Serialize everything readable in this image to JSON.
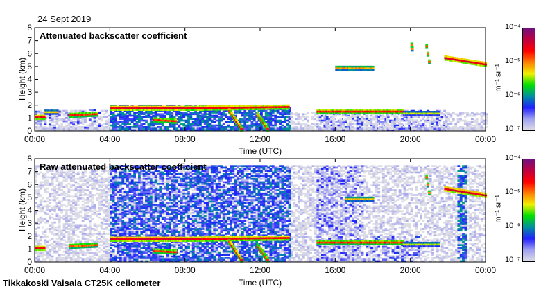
{
  "date_label": "24 Sept 2019",
  "footer": "Tikkakoski Vaisala CT25K ceilometer",
  "colorbar": {
    "unit_label": "m⁻¹ sr⁻¹",
    "tick_labels": [
      "10⁻⁴",
      "10⁻⁵",
      "10⁻⁶",
      "10⁻⁷"
    ],
    "range_log10": [
      -7,
      -4
    ],
    "colors": [
      "#dcdce6",
      "#a0a0f0",
      "#2020ff",
      "#0090a0",
      "#00e000",
      "#f0f000",
      "#ff8000",
      "#ff0000",
      "#c00040",
      "#701080"
    ]
  },
  "chart_data": [
    {
      "type": "heatmap",
      "title": "Attenuated backscatter coefficient",
      "xlabel": "Time (UTC)",
      "ylabel": "Height (km)",
      "xlim_hours": [
        0,
        24
      ],
      "ylim_km": [
        0,
        8
      ],
      "x_tick_labels": [
        "00:00",
        "04:00",
        "08:00",
        "12:00",
        "16:00",
        "20:00",
        "00:00"
      ],
      "y_tick_labels": [
        "0",
        "1",
        "2",
        "3",
        "4",
        "5",
        "6",
        "7",
        "8"
      ],
      "noise_regions": [
        {
          "t": [
            0,
            24
          ],
          "h": [
            0,
            0.2
          ],
          "log10": -7.0,
          "density": 0.9
        },
        {
          "t": [
            0,
            4
          ],
          "h": [
            0,
            1.6
          ],
          "log10": -7.0,
          "density": 0.55
        },
        {
          "t": [
            0,
            3.5
          ],
          "h": [
            0.2,
            1.6
          ],
          "log10": -6.5,
          "density": 0.2
        },
        {
          "t": [
            4,
            13.6
          ],
          "h": [
            0,
            2.0
          ],
          "log10": -6.2,
          "density": 0.75
        },
        {
          "t": [
            15,
            22
          ],
          "h": [
            0,
            1.6
          ],
          "log10": -6.5,
          "density": 0.45
        },
        {
          "t": [
            13.6,
            24
          ],
          "h": [
            0,
            1.5
          ],
          "log10": -7.0,
          "density": 0.5
        }
      ],
      "layers": [
        {
          "t": [
            0,
            0.5
          ],
          "h": [
            1.0,
            1.0
          ],
          "log10": -4.6
        },
        {
          "t": [
            0.5,
            1.2
          ],
          "h": [
            1.4,
            1.4
          ],
          "log10": -5.3
        },
        {
          "t": [
            1.8,
            3.3
          ],
          "h": [
            1.15,
            1.25
          ],
          "log10": -4.8
        },
        {
          "t": [
            4.0,
            8.0
          ],
          "h": [
            1.7,
            1.7
          ],
          "log10": -4.5
        },
        {
          "t": [
            6.3,
            7.5
          ],
          "h": [
            0.8,
            0.7
          ],
          "log10": -4.8
        },
        {
          "t": [
            8.0,
            13.5
          ],
          "h": [
            1.7,
            1.8
          ],
          "log10": -4.6
        },
        {
          "t": [
            10.3,
            11.0
          ],
          "h": [
            1.5,
            0.1
          ],
          "log10": -4.7
        },
        {
          "t": [
            11.8,
            12.4
          ],
          "h": [
            1.2,
            0.1
          ],
          "log10": -4.8
        },
        {
          "t": [
            15.0,
            19.6
          ],
          "h": [
            1.45,
            1.45
          ],
          "log10": -4.7
        },
        {
          "t": [
            16.0,
            18.0
          ],
          "h": [
            4.8,
            4.8
          ],
          "log10": -5.1
        },
        {
          "t": [
            20.0,
            20.1
          ],
          "h": [
            6.6,
            6.3
          ],
          "log10": -5.0
        },
        {
          "t": [
            20.8,
            21.0
          ],
          "h": [
            6.5,
            5.3
          ],
          "log10": -4.9
        },
        {
          "t": [
            21.8,
            24.0
          ],
          "h": [
            5.6,
            5.1
          ],
          "log10": -4.5
        },
        {
          "t": [
            19.6,
            21.5
          ],
          "h": [
            1.3,
            1.3
          ],
          "log10": -5.4
        }
      ]
    },
    {
      "type": "heatmap",
      "title": "Raw attenuated backscatter coefficient",
      "xlabel": "Time (UTC)",
      "ylabel": "Height (km)",
      "xlim_hours": [
        0,
        24
      ],
      "ylim_km": [
        0,
        8
      ],
      "x_tick_labels": [
        "00:00",
        "04:00",
        "08:00",
        "12:00",
        "16:00",
        "20:00",
        "00:00"
      ],
      "y_tick_labels": [
        "0",
        "1",
        "2",
        "3",
        "4",
        "5",
        "6",
        "7",
        "8"
      ],
      "noise_regions": [
        {
          "t": [
            0,
            24
          ],
          "h": [
            0,
            7.5
          ],
          "log10": -7.0,
          "density": 0.55
        },
        {
          "t": [
            4,
            13.6
          ],
          "h": [
            0,
            7.5
          ],
          "log10": -6.3,
          "density": 0.6
        },
        {
          "t": [
            15,
            17.5
          ],
          "h": [
            0,
            7.5
          ],
          "log10": -6.6,
          "density": 0.35
        },
        {
          "t": [
            17.5,
            20.5
          ],
          "h": [
            0,
            2.0
          ],
          "log10": -6.5,
          "density": 0.3
        },
        {
          "t": [
            22.5,
            23.0
          ],
          "h": [
            0,
            7.5
          ],
          "log10": -6.2,
          "density": 0.6
        }
      ],
      "layers": [
        {
          "t": [
            0,
            0.5
          ],
          "h": [
            1.0,
            1.0
          ],
          "log10": -4.6
        },
        {
          "t": [
            1.8,
            3.3
          ],
          "h": [
            1.15,
            1.25
          ],
          "log10": -4.9
        },
        {
          "t": [
            4.0,
            8.0
          ],
          "h": [
            1.7,
            1.7
          ],
          "log10": -4.5
        },
        {
          "t": [
            6.3,
            7.5
          ],
          "h": [
            0.8,
            0.7
          ],
          "log10": -4.8
        },
        {
          "t": [
            8.0,
            13.5
          ],
          "h": [
            1.7,
            1.8
          ],
          "log10": -4.6
        },
        {
          "t": [
            10.3,
            11.0
          ],
          "h": [
            1.5,
            0.1
          ],
          "log10": -4.7
        },
        {
          "t": [
            11.8,
            12.4
          ],
          "h": [
            1.2,
            0.1
          ],
          "log10": -4.8
        },
        {
          "t": [
            15.0,
            19.6
          ],
          "h": [
            1.45,
            1.45
          ],
          "log10": -4.8
        },
        {
          "t": [
            16.5,
            18.0
          ],
          "h": [
            4.8,
            4.8
          ],
          "log10": -5.2
        },
        {
          "t": [
            20.8,
            21.0
          ],
          "h": [
            6.5,
            5.3
          ],
          "log10": -4.9
        },
        {
          "t": [
            21.8,
            24.0
          ],
          "h": [
            5.6,
            5.1
          ],
          "log10": -4.5
        },
        {
          "t": [
            19.6,
            21.5
          ],
          "h": [
            1.3,
            1.3
          ],
          "log10": -5.4
        }
      ]
    }
  ]
}
